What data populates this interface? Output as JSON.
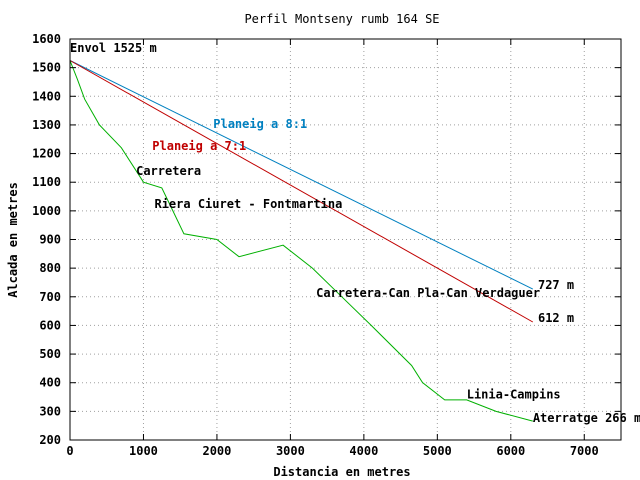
{
  "chart_data": {
    "type": "line",
    "title": "Perfil Montseny rumb 164 SE",
    "xlabel": "Distancia en metres",
    "ylabel": "Alcada en metres",
    "xlim": [
      0,
      7500
    ],
    "ylim": [
      200,
      1600
    ],
    "x_ticks": [
      0,
      1000,
      2000,
      3000,
      4000,
      5000,
      6000,
      7000
    ],
    "y_ticks": [
      200,
      300,
      400,
      500,
      600,
      700,
      800,
      900,
      1000,
      1100,
      1200,
      1300,
      1400,
      1500,
      1600
    ],
    "grid": true,
    "series": [
      {
        "name": "Planeig a 8:1",
        "color": "#0080c0",
        "x": [
          0,
          6300
        ],
        "y": [
          1525,
          727
        ]
      },
      {
        "name": "Planeig a 7:1",
        "color": "#c00000",
        "x": [
          0,
          6300
        ],
        "y": [
          1525,
          612
        ]
      },
      {
        "color": "#00b000",
        "x": [
          0,
          100,
          200,
          400,
          700,
          1000,
          1250,
          1400,
          1550,
          2000,
          2300,
          2900,
          3300,
          3700,
          4100,
          4650,
          4800,
          5100,
          5400,
          5800,
          6300
        ],
        "y": [
          1525,
          1460,
          1390,
          1300,
          1220,
          1100,
          1080,
          1000,
          920,
          900,
          840,
          880,
          800,
          700,
          600,
          460,
          400,
          340,
          340,
          300,
          266
        ]
      }
    ],
    "annotations": [
      {
        "text": "Envol 1525 m",
        "x": 0,
        "y": 1555
      },
      {
        "text": "Carretera",
        "x": 900,
        "y": 1125
      },
      {
        "text": "Riera Ciuret - Fontmartina",
        "x": 1150,
        "y": 1010
      },
      {
        "text": "Carretera-Can Pla-Can Verdaguer",
        "x": 3350,
        "y": 700
      },
      {
        "text": "Linia-Campins",
        "x": 5400,
        "y": 345
      },
      {
        "text": "Aterratge 266 m",
        "x": 6300,
        "y": 262
      },
      {
        "text": "727 m",
        "x": 6370,
        "y": 727
      },
      {
        "text": "612 m",
        "x": 6370,
        "y": 612
      }
    ],
    "series_labels": [
      {
        "text": "Planeig a 8:1",
        "x": 1950,
        "y": 1290,
        "color": "#0080c0"
      },
      {
        "text": "Planeig a 7:1",
        "x": 1120,
        "y": 1212,
        "color": "#c00000"
      }
    ]
  }
}
